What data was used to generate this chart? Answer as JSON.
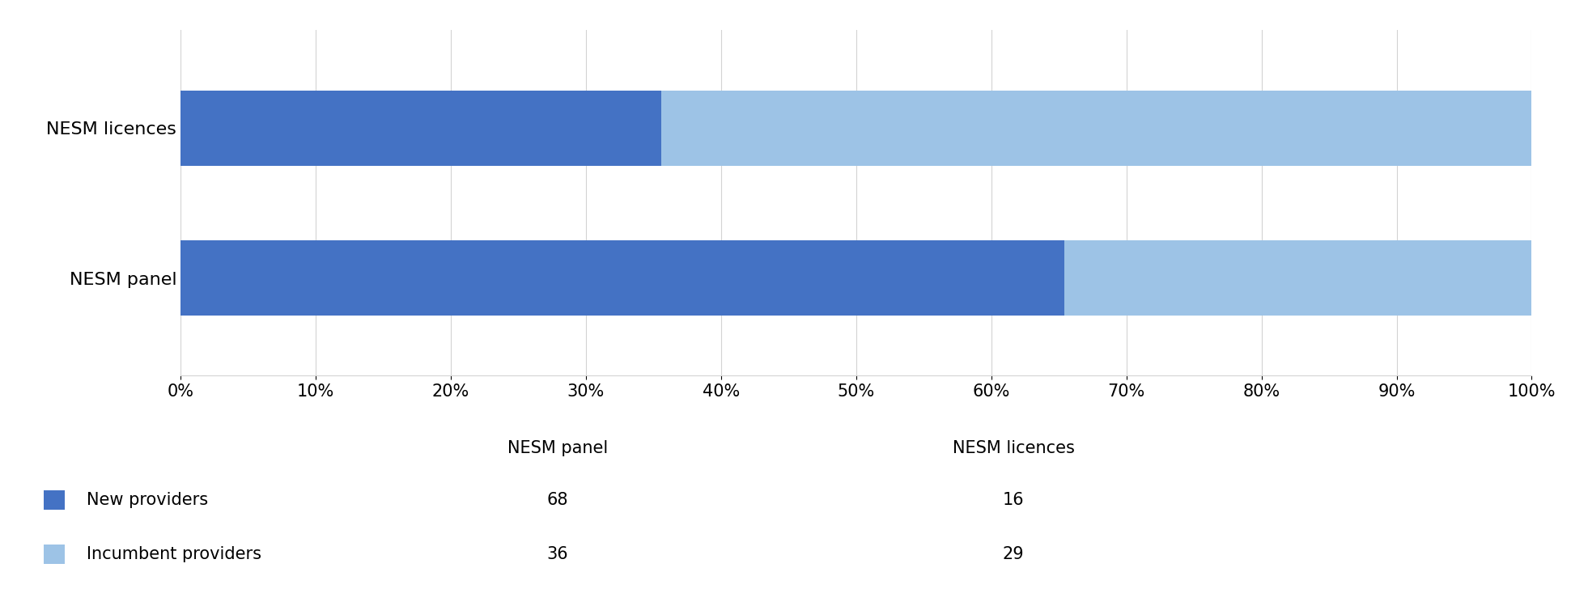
{
  "categories": [
    "NESM panel",
    "NESM licences"
  ],
  "new_providers": [
    68,
    16
  ],
  "incumbent_providers": [
    36,
    29
  ],
  "color_new": "#4472C4",
  "color_incumbent": "#9DC3E6",
  "legend_labels": [
    "New providers",
    "Incumbent providers"
  ],
  "table_col1_header": "NESM panel",
  "table_col2_header": "NESM licences",
  "table_new_panel": "68",
  "table_new_licences": "16",
  "table_incumbent_panel": "36",
  "table_incumbent_licences": "29",
  "background_color": "#FFFFFF",
  "label_fontsize": 16,
  "tick_fontsize": 15,
  "legend_fontsize": 15,
  "table_fontsize": 15
}
